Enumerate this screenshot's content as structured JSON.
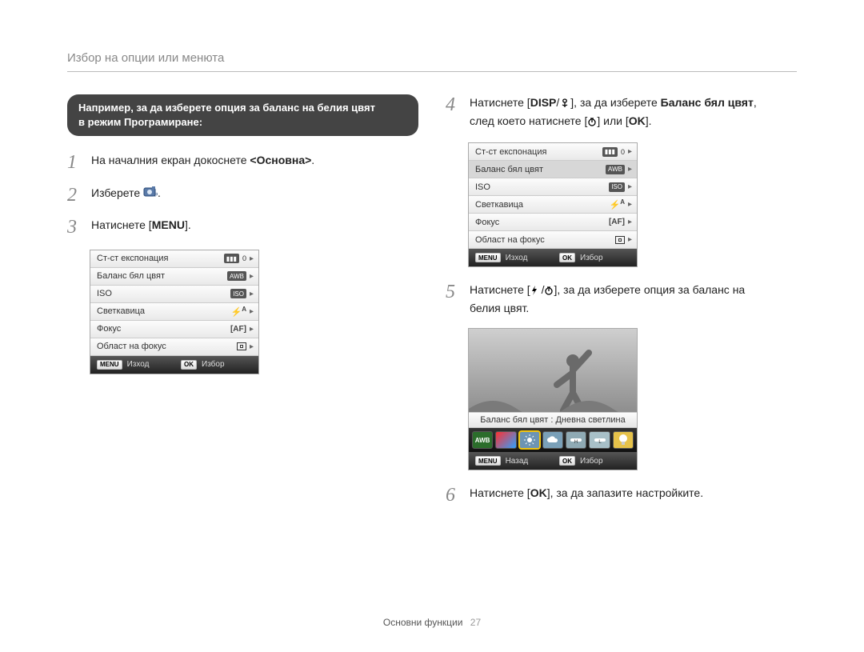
{
  "header": {
    "title": "Избор на опции или менюта"
  },
  "pill": {
    "line1_prefix": "Например, за да изберете опция за баланс на белия цвят",
    "line2": "в режим Програмиране:"
  },
  "steps": {
    "s1": {
      "num": "1",
      "text_a": "На началния екран докоснете ",
      "bold": "<Основна>",
      "text_b": "."
    },
    "s2": {
      "num": "2",
      "text": "Изберете "
    },
    "s3": {
      "num": "3",
      "text_a": "Натиснете [",
      "btn": "MENU",
      "text_b": "]."
    },
    "s4": {
      "num": "4",
      "text_a": "Натиснете [",
      "btn1": "DISP",
      "text_b": "], за да изберете ",
      "bold": "Баланс бял цвят",
      "text_c": ",",
      "text_d": "след което натиснете [",
      "text_e": "] или [",
      "btn2": "OK",
      "text_f": "]."
    },
    "s5": {
      "num": "5",
      "text_a": "Натиснете [",
      "text_b": "], за да изберете опция за баланс на",
      "text_c": "белия цвят."
    },
    "s6": {
      "num": "6",
      "text_a": "Натиснете [",
      "btn": "OK",
      "text_b": "], за да запазите настройките."
    }
  },
  "menu": {
    "rows": [
      {
        "label": "Ст-ст експонация",
        "icons": [
          "ev",
          "0"
        ],
        "arrow": true
      },
      {
        "label": "Баланс бял цвят",
        "icons": [
          "awb"
        ],
        "arrow": true
      },
      {
        "label": "ISO",
        "icons": [
          "isoA"
        ],
        "arrow": true
      },
      {
        "label": "Светкавица",
        "icons": [
          "flashA"
        ],
        "arrow": true
      },
      {
        "label": "Фокус",
        "icons": [
          "af"
        ],
        "arrow": true
      },
      {
        "label": "Област на фокус",
        "icons": [
          "area"
        ],
        "arrow": true
      }
    ],
    "footer": {
      "left_btn": "MENU",
      "left_label": "Изход",
      "right_btn": "OK",
      "right_label": "Избор"
    }
  },
  "menu2_selected_index": 1,
  "wb": {
    "label": "Баланс бял цвят : Дневна светлина",
    "footer": {
      "left_btn": "MENU",
      "left_label": "Назад",
      "right_btn": "OK",
      "right_label": "Избор"
    },
    "thumbs": [
      {
        "bg": "#2b6d2b",
        "type": "awb"
      },
      {
        "bg": "linear-gradient(135deg,#ff3030,#30a0ff)",
        "type": "rainbow"
      },
      {
        "bg": "#6d94b3",
        "type": "sun",
        "selected": true
      },
      {
        "bg": "#7aa0b8",
        "type": "cloud"
      },
      {
        "bg": "#8faab4",
        "type": "fluoH"
      },
      {
        "bg": "#a8c0c8",
        "type": "fluoL"
      },
      {
        "bg": "#e6c24a",
        "type": "bulb"
      }
    ]
  },
  "footer": {
    "label": "Основни функции",
    "page": "27"
  }
}
